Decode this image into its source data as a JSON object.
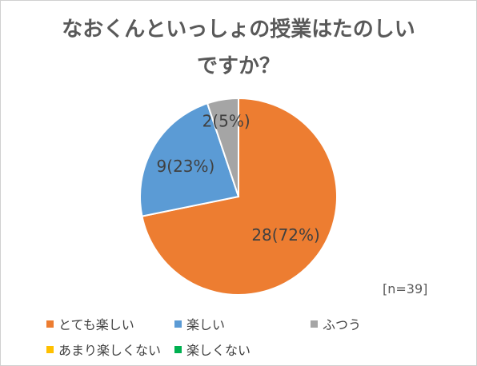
{
  "chart_data": {
    "type": "pie",
    "title_line1": "なおくんといっしょの授業はたのしい",
    "title_line2": "ですか？",
    "n_label": "[n=39]",
    "slices": [
      {
        "name": "とても楽しい",
        "value": 28,
        "label": "28(72%)",
        "color": "#ED7D31"
      },
      {
        "name": "楽しい",
        "value": 9,
        "label": "9(23%)",
        "color": "#5B9BD5"
      },
      {
        "name": "ふつう",
        "value": 2,
        "label": "2(5%)",
        "color": "#A5A5A5"
      },
      {
        "name": "あまり楽しくない",
        "value": 0,
        "label": "",
        "color": "#FFC000"
      },
      {
        "name": "楽しくない",
        "value": 0,
        "label": "",
        "color": "#00B050"
      }
    ],
    "legend_position": "bottom"
  }
}
